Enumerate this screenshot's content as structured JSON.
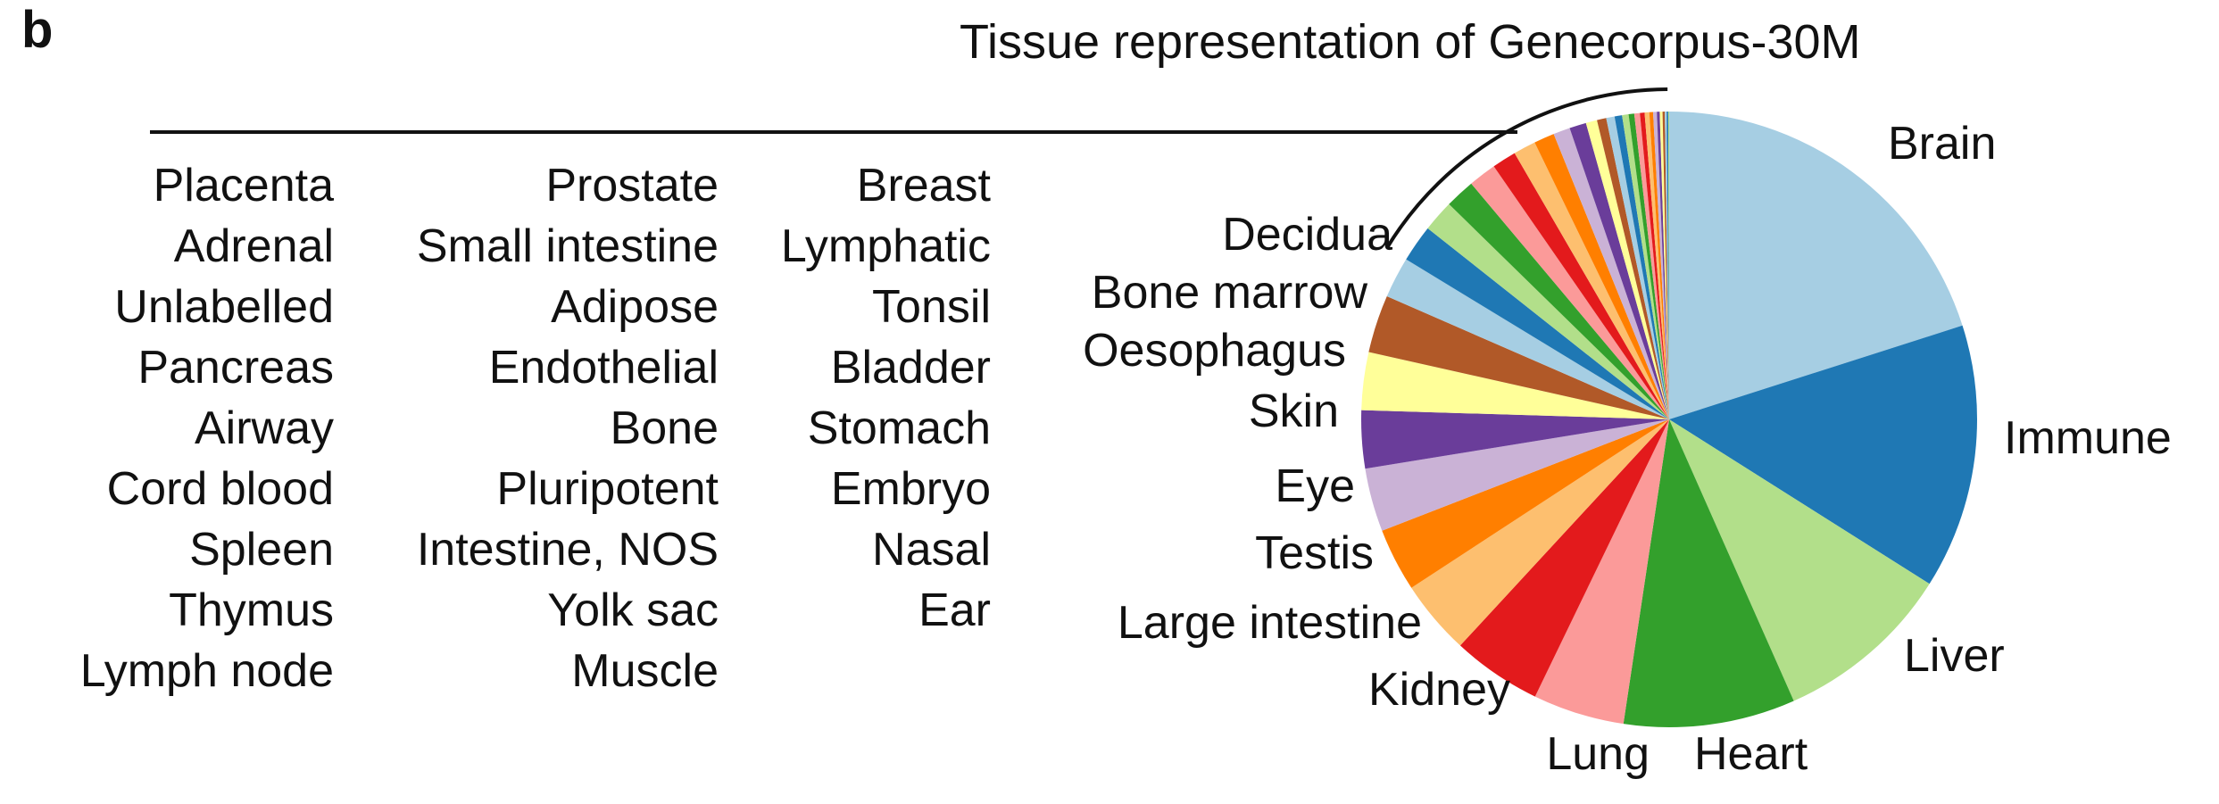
{
  "panel_letter": "b",
  "chart_data": {
    "type": "pie",
    "title": "Tissue representation of Genecorpus-30M",
    "start": "12 o'clock",
    "direction": "clockwise",
    "slices": [
      {
        "label": "Brain",
        "value": 20.5,
        "color": "#a6cee3"
      },
      {
        "label": "Immune",
        "value": 14.2,
        "color": "#1f78b4"
      },
      {
        "label": "Liver",
        "value": 9.6,
        "color": "#b2df8a"
      },
      {
        "label": "Heart",
        "value": 9.2,
        "color": "#33a02c"
      },
      {
        "label": "Lung",
        "value": 4.9,
        "color": "#fb9a99"
      },
      {
        "label": "Kidney",
        "value": 4.8,
        "color": "#e31a1c"
      },
      {
        "label": "Large intestine",
        "value": 4.0,
        "color": "#fdbf6f"
      },
      {
        "label": "Testis",
        "value": 3.4,
        "color": "#ff7f00"
      },
      {
        "label": "Eye",
        "value": 3.4,
        "color": "#cab2d6"
      },
      {
        "label": "Skin",
        "value": 3.1,
        "color": "#6a3d9a"
      },
      {
        "label": "Oesophagus",
        "value": 3.1,
        "color": "#ffff99"
      },
      {
        "label": "Bone marrow",
        "value": 3.1,
        "color": "#b15928"
      },
      {
        "label": "Decidua",
        "value": 2.2,
        "color": "#a6cee3"
      },
      {
        "label": "Placenta",
        "value": 2.0,
        "color": "#1f78b4"
      },
      {
        "label": "Adrenal",
        "value": 1.7,
        "color": "#b2df8a"
      },
      {
        "label": "Unlabelled",
        "value": 1.6,
        "color": "#33a02c"
      },
      {
        "label": "Pancreas",
        "value": 1.5,
        "color": "#fb9a99"
      },
      {
        "label": "Airway",
        "value": 1.3,
        "color": "#e31a1c"
      },
      {
        "label": "Cord blood",
        "value": 1.2,
        "color": "#fdbf6f"
      },
      {
        "label": "Spleen",
        "value": 1.1,
        "color": "#ff7f00"
      },
      {
        "label": "Thymus",
        "value": 0.9,
        "color": "#cab2d6"
      },
      {
        "label": "Lymph node",
        "value": 0.9,
        "color": "#6a3d9a"
      },
      {
        "label": "Prostate",
        "value": 0.6,
        "color": "#ffff99"
      },
      {
        "label": "Small intestine",
        "value": 0.5,
        "color": "#b15928"
      },
      {
        "label": "Adipose",
        "value": 0.45,
        "color": "#a6cee3"
      },
      {
        "label": "Endothelial",
        "value": 0.4,
        "color": "#1f78b4"
      },
      {
        "label": "Bone",
        "value": 0.35,
        "color": "#b2df8a"
      },
      {
        "label": "Pluripotent",
        "value": 0.3,
        "color": "#33a02c"
      },
      {
        "label": "Intestine, NOS",
        "value": 0.3,
        "color": "#fb9a99"
      },
      {
        "label": "Yolk sac",
        "value": 0.25,
        "color": "#e31a1c"
      },
      {
        "label": "Muscle",
        "value": 0.25,
        "color": "#fdbf6f"
      },
      {
        "label": "Breast",
        "value": 0.2,
        "color": "#ff7f00"
      },
      {
        "label": "Lymphatic",
        "value": 0.2,
        "color": "#cab2d6"
      },
      {
        "label": "Tonsil",
        "value": 0.15,
        "color": "#6a3d9a"
      },
      {
        "label": "Bladder",
        "value": 0.15,
        "color": "#ffff99"
      },
      {
        "label": "Stomach",
        "value": 0.12,
        "color": "#b15928"
      },
      {
        "label": "Embryo",
        "value": 0.1,
        "color": "#a6cee3"
      },
      {
        "label": "Nasal",
        "value": 0.08,
        "color": "#1f78b4"
      },
      {
        "label": "Ear",
        "value": 0.05,
        "color": "#b2df8a"
      }
    ],
    "small_tissue_columns": [
      [
        "Placenta",
        "Adrenal",
        "Unlabelled",
        "Pancreas",
        "Airway",
        "Cord blood",
        "Spleen",
        "Thymus",
        "Lymph node"
      ],
      [
        "Prostate",
        "Small intestine",
        "Adipose",
        "Endothelial",
        "Bone",
        "Pluripotent",
        "Intestine, NOS",
        "Yolk sac",
        "Muscle"
      ],
      [
        "Breast",
        "Lymphatic",
        "Tonsil",
        "Bladder",
        "Stomach",
        "Embryo",
        "Nasal",
        "Ear"
      ]
    ]
  }
}
